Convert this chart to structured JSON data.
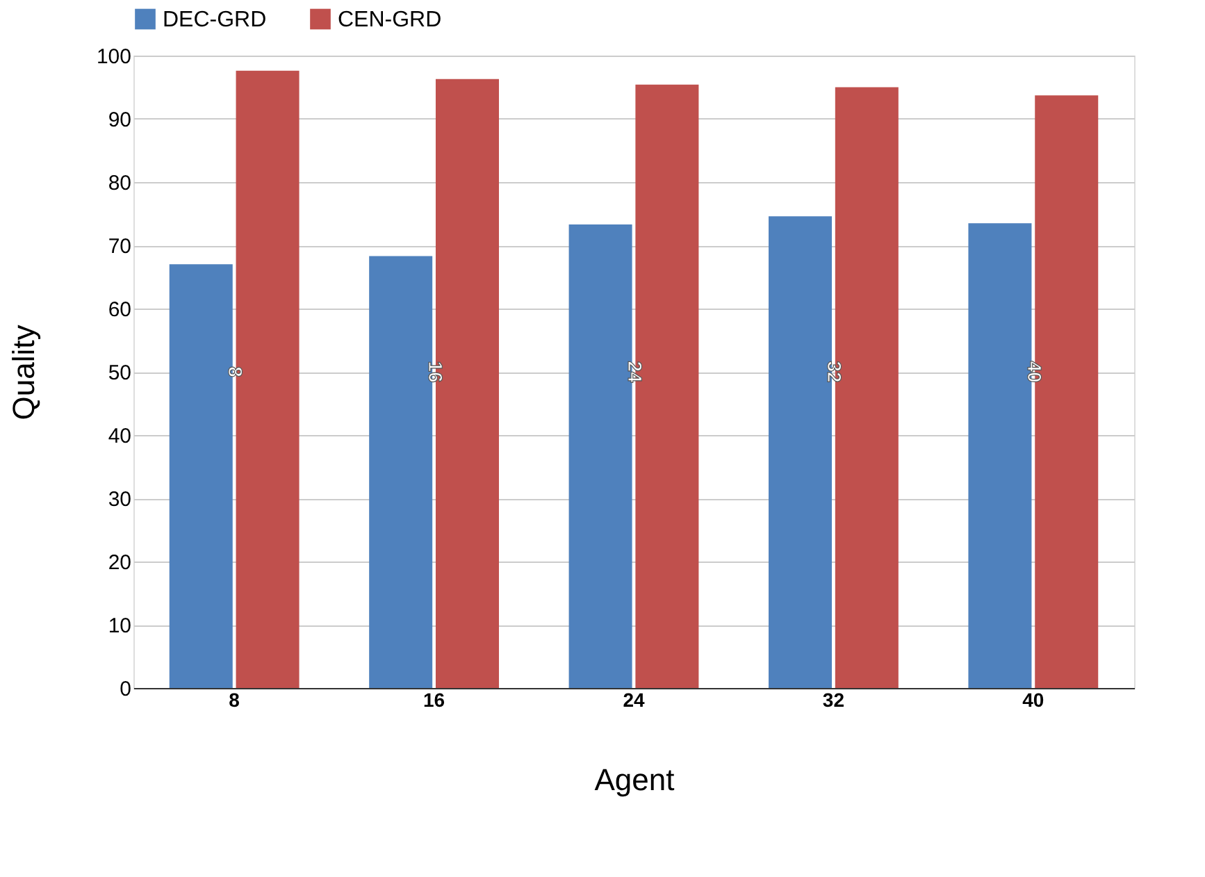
{
  "chart_data": {
    "type": "bar",
    "xlabel": "Agent",
    "ylabel": "Quality",
    "categories": [
      "8",
      "16",
      "24",
      "32",
      "40"
    ],
    "series": [
      {
        "name": "DEC-GRD",
        "color": "#4f81bd",
        "values": [
          67.0,
          68.3,
          73.3,
          74.6,
          73.5
        ]
      },
      {
        "name": "CEN-GRD",
        "color": "#c0504d",
        "values": [
          97.6,
          96.3,
          95.4,
          95.0,
          93.7
        ]
      }
    ],
    "ylim": [
      0,
      100
    ],
    "yticks": [
      0,
      10,
      20,
      30,
      40,
      50,
      60,
      70,
      80,
      90,
      100
    ],
    "grid": "y",
    "legend": "top",
    "annotations": [
      {
        "text": "8",
        "x": "8",
        "y": 50
      },
      {
        "text": "16",
        "x": "16",
        "y": 50
      },
      {
        "text": "24",
        "x": "24",
        "y": 50
      },
      {
        "text": "32",
        "x": "32",
        "y": 50
      },
      {
        "text": "40",
        "x": "40",
        "y": 50
      }
    ]
  }
}
